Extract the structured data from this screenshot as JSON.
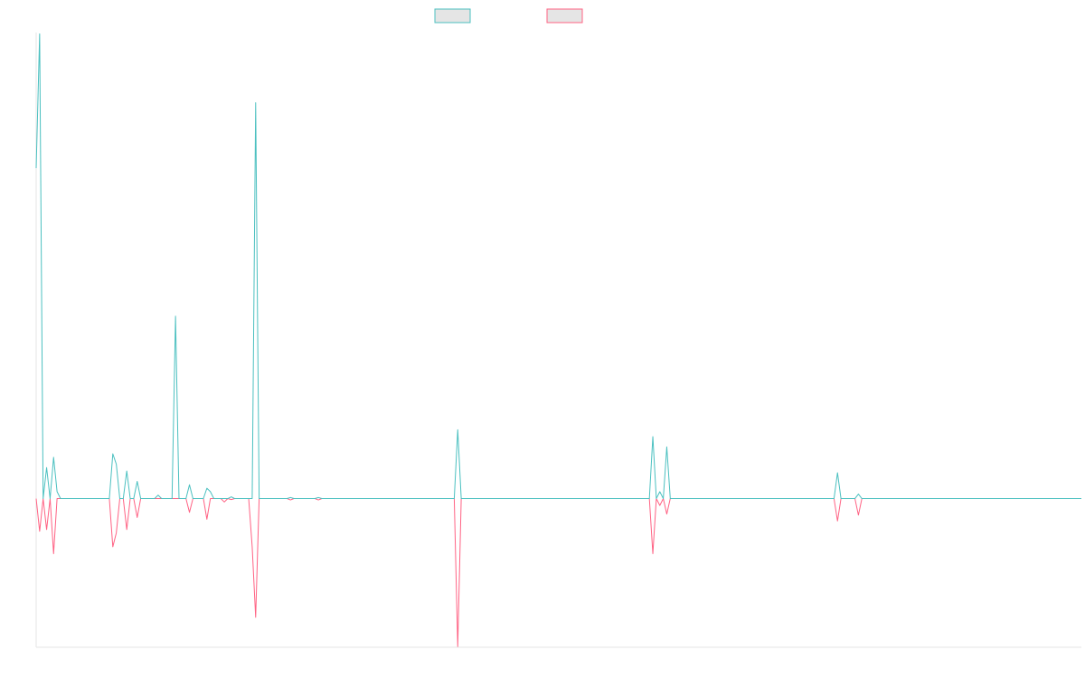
{
  "chart_data": {
    "type": "line",
    "title": "",
    "xlabel": "",
    "ylabel": "",
    "grid": false,
    "legend_position": "top-center",
    "x_range": [
      0,
      300
    ],
    "ylim": [
      -43.2,
      135.4
    ],
    "series": [
      {
        "color": "#4bc0c0",
        "legend_fill": "#e5e5e5",
        "points": [
          [
            0,
            96
          ],
          [
            1,
            135
          ],
          [
            2,
            0
          ],
          [
            3,
            9
          ],
          [
            4,
            0
          ],
          [
            5,
            12
          ],
          [
            6,
            2
          ],
          [
            7,
            0
          ],
          [
            21,
            0
          ],
          [
            22,
            13
          ],
          [
            23,
            10
          ],
          [
            24,
            0
          ],
          [
            25,
            0
          ],
          [
            26,
            8
          ],
          [
            27,
            0
          ],
          [
            28,
            0
          ],
          [
            29,
            5
          ],
          [
            30,
            0
          ],
          [
            34,
            0
          ],
          [
            35,
            1
          ],
          [
            36,
            0
          ],
          [
            39,
            0
          ],
          [
            40,
            53
          ],
          [
            41,
            0
          ],
          [
            43,
            0
          ],
          [
            44,
            4
          ],
          [
            45,
            0
          ],
          [
            48,
            0
          ],
          [
            49,
            3
          ],
          [
            50,
            2
          ],
          [
            51,
            0
          ],
          [
            55,
            0
          ],
          [
            56,
            0.5
          ],
          [
            57,
            0
          ],
          [
            62,
            0
          ],
          [
            63,
            115
          ],
          [
            64,
            0
          ],
          [
            72,
            0
          ],
          [
            73,
            0.3
          ],
          [
            74,
            0
          ],
          [
            80,
            0
          ],
          [
            81,
            0.3
          ],
          [
            82,
            0
          ],
          [
            120,
            0
          ],
          [
            121,
            20
          ],
          [
            122,
            0
          ],
          [
            176,
            0
          ],
          [
            177,
            18
          ],
          [
            178,
            0
          ],
          [
            179,
            2
          ],
          [
            180,
            0
          ],
          [
            181,
            15
          ],
          [
            182,
            0
          ],
          [
            229,
            0
          ],
          [
            230,
            7.5
          ],
          [
            231,
            0
          ],
          [
            235,
            0
          ],
          [
            236,
            1.3
          ],
          [
            237,
            0
          ],
          [
            300,
            0
          ]
        ]
      },
      {
        "color": "#ff6384",
        "legend_fill": "#e5e5e5",
        "points": [
          [
            0,
            0
          ],
          [
            1,
            -9.5
          ],
          [
            2,
            0
          ],
          [
            3,
            -9
          ],
          [
            4,
            0
          ],
          [
            5,
            -16
          ],
          [
            6,
            0
          ],
          [
            21,
            0
          ],
          [
            22,
            -14
          ],
          [
            23,
            -10
          ],
          [
            24,
            0
          ],
          [
            25,
            0
          ],
          [
            26,
            -9
          ],
          [
            27,
            0
          ],
          [
            28,
            0
          ],
          [
            29,
            -5.5
          ],
          [
            30,
            0
          ],
          [
            38,
            0
          ],
          [
            39,
            0
          ],
          [
            40,
            0
          ],
          [
            43,
            0
          ],
          [
            44,
            -4
          ],
          [
            45,
            0
          ],
          [
            48,
            0
          ],
          [
            49,
            -6
          ],
          [
            50,
            0
          ],
          [
            53,
            0
          ],
          [
            54,
            -1
          ],
          [
            55,
            0
          ],
          [
            56,
            -0.3
          ],
          [
            57,
            0
          ],
          [
            61,
            0
          ],
          [
            62,
            -14
          ],
          [
            63,
            -34.5
          ],
          [
            64,
            0
          ],
          [
            72,
            0
          ],
          [
            73,
            -0.4
          ],
          [
            74,
            0
          ],
          [
            80,
            0
          ],
          [
            81,
            -0.4
          ],
          [
            82,
            0
          ],
          [
            120,
            0
          ],
          [
            121,
            -43
          ],
          [
            122,
            0
          ],
          [
            176,
            0
          ],
          [
            177,
            -16
          ],
          [
            178,
            0
          ],
          [
            179,
            -2
          ],
          [
            180,
            0
          ],
          [
            181,
            -4.5
          ],
          [
            182,
            0
          ],
          [
            229,
            0
          ],
          [
            230,
            -6.5
          ],
          [
            231,
            0
          ],
          [
            235,
            0
          ],
          [
            236,
            -4.8
          ],
          [
            237,
            0
          ],
          [
            300,
            0
          ]
        ]
      }
    ]
  }
}
